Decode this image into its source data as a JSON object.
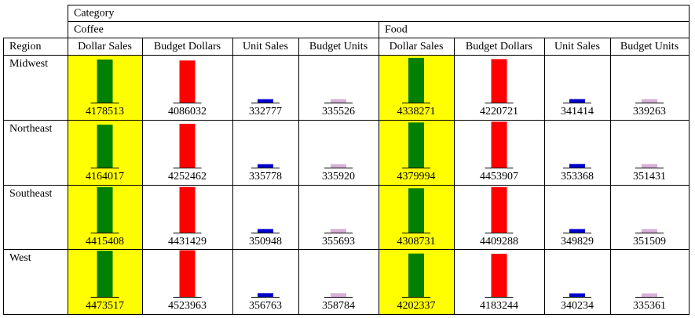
{
  "header": {
    "title": "Category",
    "groups": [
      "Coffee",
      "Food"
    ],
    "region": "Region",
    "columns": [
      "Dollar Sales",
      "Budget Dollars",
      "Unit Sales",
      "Budget Units",
      "Dollar Sales",
      "Budget Dollars",
      "Unit Sales",
      "Budget Units"
    ]
  },
  "bar_colors": [
    "#008000",
    "#ff0000",
    "#0000cc",
    "#d8b0d8",
    "#008000",
    "#ff0000",
    "#0000cc",
    "#d8b0d8"
  ],
  "highlight_color": "#ffff00",
  "rows": [
    {
      "region": "Midwest",
      "values": [
        4178513,
        4086032,
        332777,
        335526,
        4338271,
        4220721,
        341414,
        339263
      ]
    },
    {
      "region": "Northeast",
      "values": [
        4164017,
        4252462,
        335778,
        335920,
        4379994,
        4453907,
        353368,
        351431
      ]
    },
    {
      "region": "Southeast",
      "values": [
        4415408,
        4431429,
        350948,
        355693,
        4308731,
        4409288,
        349829,
        351509
      ]
    },
    {
      "region": "West",
      "values": [
        4473517,
        4523963,
        356763,
        358784,
        4202337,
        4183244,
        340234,
        335361
      ]
    }
  ]
}
